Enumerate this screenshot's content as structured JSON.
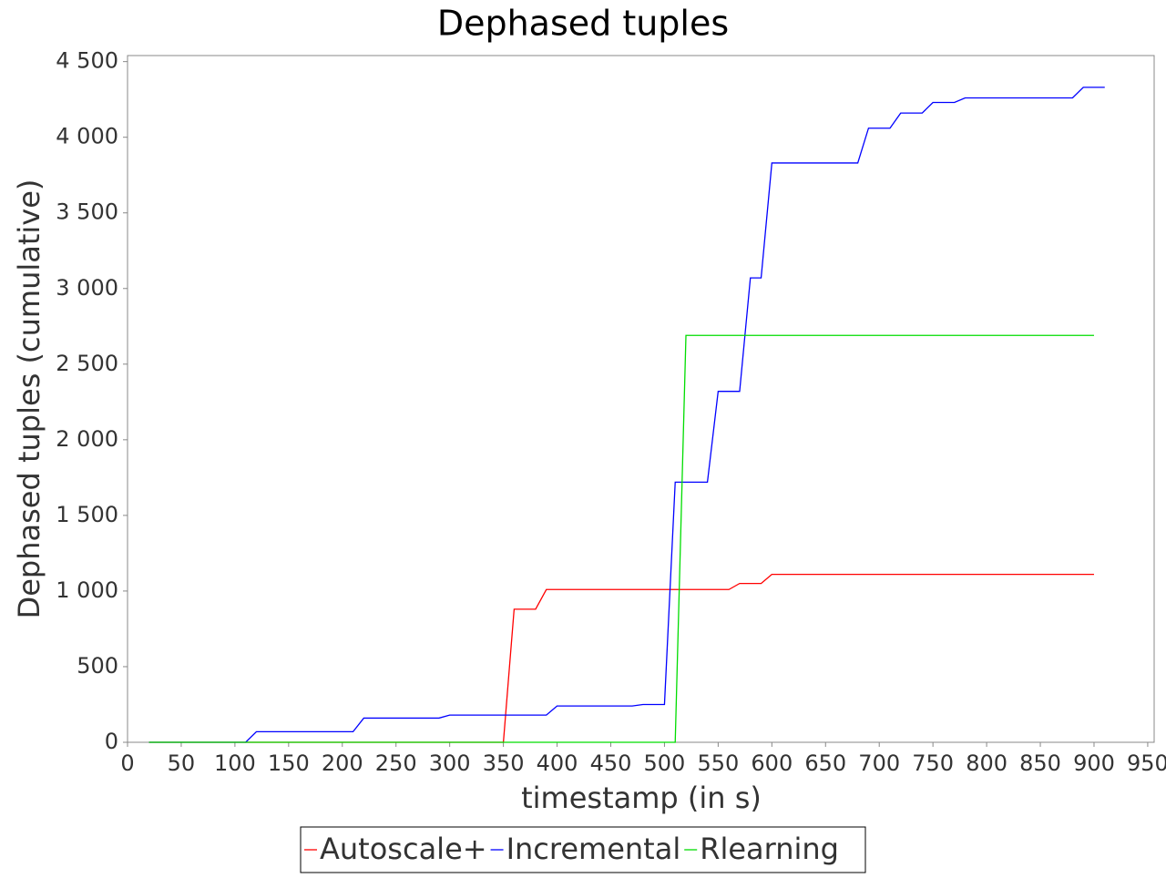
{
  "chart_data": {
    "type": "line",
    "title": "Dephased tuples",
    "x_label": "timestamp (in s)",
    "y_label": "Dephased tuples (cumulative)",
    "xlim": [
      0,
      956
    ],
    "ylim": [
      0,
      4540
    ],
    "xticks": [
      0,
      50,
      100,
      150,
      200,
      250,
      300,
      350,
      400,
      450,
      500,
      550,
      600,
      650,
      700,
      750,
      800,
      850,
      900,
      950
    ],
    "yticks": [
      0,
      500,
      {
        "value": 1000,
        "label": "1 000"
      },
      {
        "value": 1500,
        "label": "1 500"
      },
      {
        "value": 2000,
        "label": "2 000"
      },
      {
        "value": 2500,
        "label": "2 500"
      },
      {
        "value": 3000,
        "label": "3 000"
      },
      {
        "value": 3500,
        "label": "3 500"
      },
      {
        "value": 4000,
        "label": "4 000"
      },
      {
        "value": 4500,
        "label": "4 500"
      }
    ],
    "grid": false,
    "legend": "bottom",
    "series": [
      {
        "name": "Autoscale+",
        "color": "#ff0000",
        "x": [
          20,
          350,
          360,
          380,
          390,
          560,
          570,
          590,
          600,
          900
        ],
        "values": [
          0,
          0,
          880,
          880,
          1010,
          1010,
          1050,
          1050,
          1110,
          1110
        ]
      },
      {
        "name": "Incremental",
        "color": "#0000ff",
        "x": [
          20,
          110,
          120,
          210,
          220,
          290,
          300,
          390,
          400,
          470,
          480,
          500,
          510,
          540,
          550,
          570,
          580,
          590,
          600,
          680,
          690,
          710,
          720,
          740,
          750,
          770,
          780,
          880,
          890,
          910
        ],
        "values": [
          0,
          0,
          70,
          70,
          160,
          160,
          180,
          180,
          240,
          240,
          250,
          250,
          1720,
          1720,
          2320,
          2320,
          3070,
          3070,
          3830,
          3830,
          4060,
          4060,
          4160,
          4160,
          4230,
          4230,
          4260,
          4260,
          4330,
          4330
        ]
      },
      {
        "name": "Rlearning",
        "color": "#00dd00",
        "x": [
          20,
          510,
          520,
          900
        ],
        "values": [
          0,
          0,
          2690,
          2690
        ]
      }
    ]
  }
}
